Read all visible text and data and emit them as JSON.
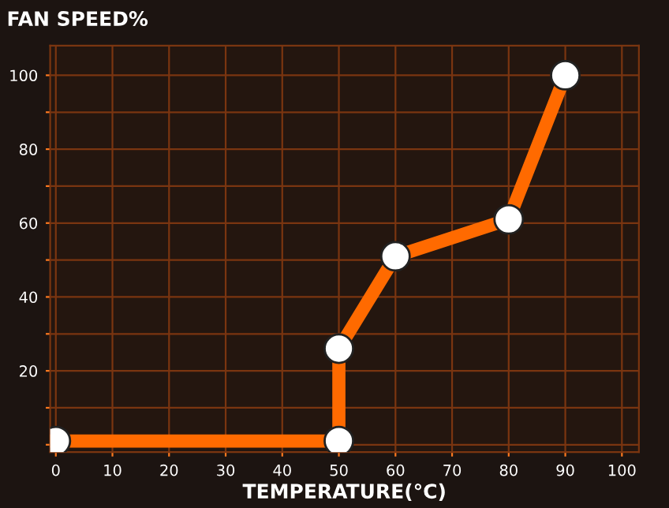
{
  "chart_data": {
    "type": "line",
    "title": "FAN SPEED%",
    "xlabel": "TEMPERATURE(°C)",
    "x": [
      0,
      50,
      50,
      60,
      80,
      90
    ],
    "series": [
      {
        "color": "#ff6a00",
        "values": [
          1,
          1,
          26,
          51,
          61,
          100
        ]
      }
    ],
    "xlim": [
      -1,
      103
    ],
    "ylim": [
      -2,
      108
    ],
    "xticks": [
      0,
      10,
      20,
      30,
      40,
      50,
      60,
      70,
      80,
      90,
      100
    ],
    "yticks": [
      {
        "value": 0,
        "label": null
      },
      {
        "value": 10,
        "label": null
      },
      20,
      {
        "value": 30,
        "label": null
      },
      40,
      {
        "value": 50,
        "label": null
      },
      60,
      {
        "value": 70,
        "label": null
      },
      80,
      {
        "value": 90,
        "label": null
      },
      100
    ],
    "grid": true,
    "marker": "circle",
    "line_style": "solid"
  }
}
